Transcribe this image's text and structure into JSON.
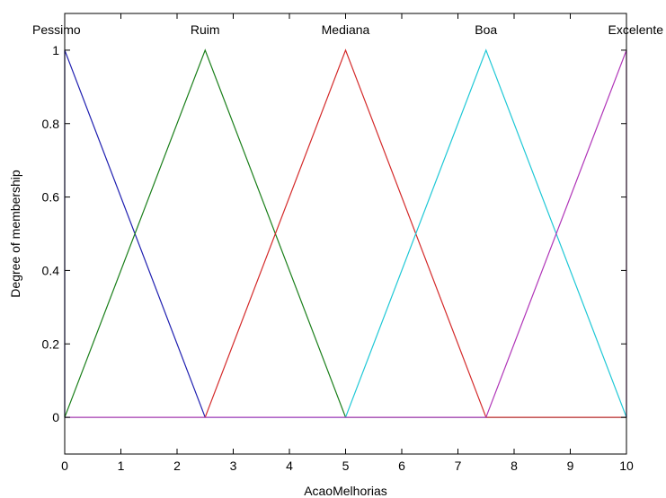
{
  "chart_data": {
    "type": "line",
    "xlabel": "AcaoMelhorias",
    "ylabel": "Degree of membership",
    "xlim": [
      0,
      10
    ],
    "ylim": [
      -0.1,
      1.1
    ],
    "x_ticks": [
      "0",
      "1",
      "2",
      "3",
      "4",
      "5",
      "6",
      "7",
      "8",
      "9",
      "10"
    ],
    "y_ticks": [
      "0",
      "0.2",
      "0.4",
      "0.6",
      "0.8",
      "1"
    ],
    "grid": false,
    "series": [
      {
        "name": "Pessimo",
        "color": "#1f1fb0",
        "x": [
          0,
          0,
          2.5,
          10
        ],
        "y": [
          0,
          1,
          0,
          0
        ]
      },
      {
        "name": "Ruim",
        "color": "#1a7f1a",
        "x": [
          0,
          2.5,
          5,
          10
        ],
        "y": [
          0,
          1,
          0,
          0
        ]
      },
      {
        "name": "Mediana",
        "color": "#d42a2a",
        "x": [
          0,
          2.5,
          5,
          7.5,
          10
        ],
        "y": [
          0,
          0,
          1,
          0,
          0
        ]
      },
      {
        "name": "Boa",
        "color": "#1fc8d6",
        "x": [
          0,
          5,
          7.5,
          10
        ],
        "y": [
          0,
          0,
          1,
          0
        ]
      },
      {
        "name": "Excelente",
        "color": "#b035b8",
        "x": [
          0,
          7.5,
          10,
          10
        ],
        "y": [
          0,
          0,
          1,
          0
        ]
      }
    ]
  }
}
